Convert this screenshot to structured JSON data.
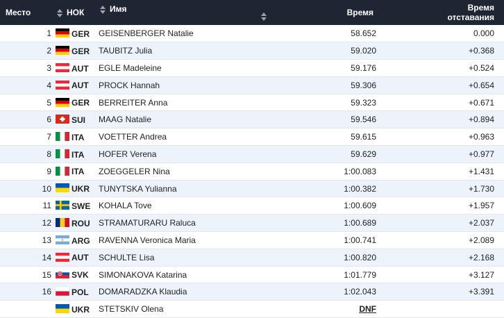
{
  "header": {
    "rank": "Место",
    "noc": "НОК",
    "name": "Имя",
    "time": "Время",
    "gap_line1": "Время",
    "gap_line2": "отставания"
  },
  "colors": {
    "header_bg": "#1e2533",
    "row_alt_bg": "#edf3fb"
  },
  "rows": [
    {
      "rank": "1",
      "noc": "GER",
      "flag": "germany-flag-icon",
      "name": "GEISENBERGER Natalie",
      "time": "58.652",
      "gap": "0.000"
    },
    {
      "rank": "2",
      "noc": "GER",
      "flag": "germany-flag-icon",
      "name": "TAUBITZ Julia",
      "time": "59.020",
      "gap": "+0.368"
    },
    {
      "rank": "3",
      "noc": "AUT",
      "flag": "austria-flag-icon",
      "name": "EGLE Madeleine",
      "time": "59.176",
      "gap": "+0.524"
    },
    {
      "rank": "4",
      "noc": "AUT",
      "flag": "austria-flag-icon",
      "name": "PROCK Hannah",
      "time": "59.306",
      "gap": "+0.654"
    },
    {
      "rank": "5",
      "noc": "GER",
      "flag": "germany-flag-icon",
      "name": "BERREITER Anna",
      "time": "59.323",
      "gap": "+0.671"
    },
    {
      "rank": "6",
      "noc": "SUI",
      "flag": "switzerland-flag-icon",
      "name": "MAAG Natalie",
      "time": "59.546",
      "gap": "+0.894"
    },
    {
      "rank": "7",
      "noc": "ITA",
      "flag": "italy-flag-icon",
      "name": "VOETTER Andrea",
      "time": "59.615",
      "gap": "+0.963"
    },
    {
      "rank": "8",
      "noc": "ITA",
      "flag": "italy-flag-icon",
      "name": "HOFER Verena",
      "time": "59.629",
      "gap": "+0.977"
    },
    {
      "rank": "9",
      "noc": "ITA",
      "flag": "italy-flag-icon",
      "name": "ZOEGGELER Nina",
      "time": "1:00.083",
      "gap": "+1.431"
    },
    {
      "rank": "10",
      "noc": "UKR",
      "flag": "ukraine-flag-icon",
      "name": "TUNYTSKA Yulianna",
      "time": "1:00.382",
      "gap": "+1.730"
    },
    {
      "rank": "11",
      "noc": "SWE",
      "flag": "sweden-flag-icon",
      "name": "KOHALA Tove",
      "time": "1:00.609",
      "gap": "+1.957"
    },
    {
      "rank": "12",
      "noc": "ROU",
      "flag": "romania-flag-icon",
      "name": "STRAMATURARU Raluca",
      "time": "1:00.689",
      "gap": "+2.037"
    },
    {
      "rank": "13",
      "noc": "ARG",
      "flag": "argentina-flag-icon",
      "name": "RAVENNA Veronica Maria",
      "time": "1:00.741",
      "gap": "+2.089"
    },
    {
      "rank": "14",
      "noc": "AUT",
      "flag": "austria-flag-icon",
      "name": "SCHULTE Lisa",
      "time": "1:00.820",
      "gap": "+2.168"
    },
    {
      "rank": "15",
      "noc": "SVK",
      "flag": "slovakia-flag-icon",
      "name": "SIMONAKOVA Katarina",
      "time": "1:01.779",
      "gap": "+3.127"
    },
    {
      "rank": "16",
      "noc": "POL",
      "flag": "poland-flag-icon",
      "name": "DOMARADZKA Klaudia",
      "time": "1:02.043",
      "gap": "+3.391"
    },
    {
      "rank": "",
      "noc": "UKR",
      "flag": "ukraine-flag-icon",
      "name": "STETSKIV Olena",
      "time": "DNF",
      "gap": ""
    }
  ]
}
